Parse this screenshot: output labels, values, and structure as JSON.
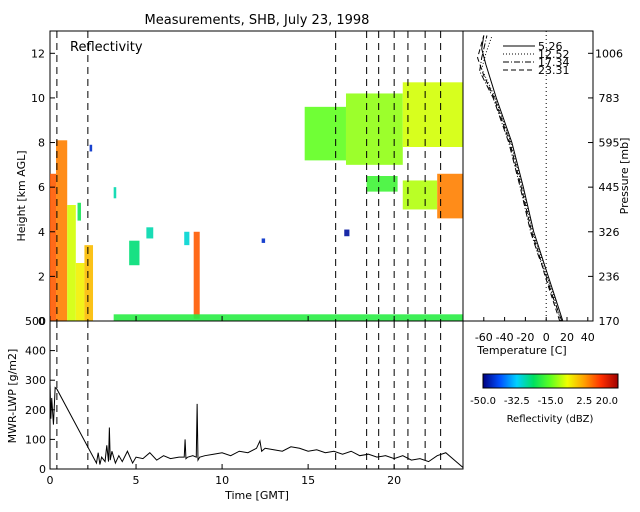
{
  "title": "Measurements, SHB, July 23, 1998",
  "chart_data": [
    {
      "id": "reflectivity",
      "type": "heatmap",
      "panel_label": "Reflectivity",
      "xlabel": "",
      "ylabel": "Height [km AGL]",
      "xlim": [
        0,
        24
      ],
      "ylim": [
        0,
        13
      ],
      "xticks": [
        0,
        5,
        10,
        15,
        20
      ],
      "yticks": [
        0,
        2,
        4,
        6,
        8,
        10,
        12
      ],
      "dashed_times": [
        0.4,
        2.2,
        16.6,
        18.4,
        19.1,
        20.0,
        20.8,
        21.8,
        22.7
      ],
      "cells": [
        {
          "t0": 0.0,
          "t1": 0.35,
          "h0": 0.0,
          "h1": 6.6,
          "dbz": 8
        },
        {
          "t0": 0.35,
          "t1": 1.0,
          "h0": 0.0,
          "h1": 8.1,
          "dbz": 5
        },
        {
          "t0": 1.0,
          "t1": 1.5,
          "h0": 0.0,
          "h1": 5.2,
          "dbz": -8
        },
        {
          "t0": 1.5,
          "t1": 2.0,
          "h0": 0.0,
          "h1": 2.6,
          "dbz": -5
        },
        {
          "t0": 2.0,
          "t1": 2.5,
          "h0": 0.0,
          "h1": 3.4,
          "dbz": 0
        },
        {
          "t0": 1.6,
          "t1": 1.8,
          "h0": 4.5,
          "h1": 5.3,
          "dbz": -22
        },
        {
          "t0": 2.3,
          "t1": 2.45,
          "h0": 7.6,
          "h1": 7.9,
          "dbz": -45
        },
        {
          "t0": 3.7,
          "t1": 3.85,
          "h0": 5.5,
          "h1": 6.0,
          "dbz": -28
        },
        {
          "t0": 4.6,
          "t1": 5.2,
          "h0": 2.5,
          "h1": 3.6,
          "dbz": -25
        },
        {
          "t0": 5.6,
          "t1": 6.0,
          "h0": 3.7,
          "h1": 4.2,
          "dbz": -28
        },
        {
          "t0": 7.8,
          "t1": 8.1,
          "h0": 3.4,
          "h1": 4.0,
          "dbz": -30
        },
        {
          "t0": 8.35,
          "t1": 8.7,
          "h0": 0.1,
          "h1": 4.0,
          "dbz": 8
        },
        {
          "t0": 12.3,
          "t1": 12.5,
          "h0": 3.5,
          "h1": 3.7,
          "dbz": -45
        },
        {
          "t0": 3.7,
          "t1": 24.0,
          "h0": 0.0,
          "h1": 0.3,
          "dbz": -20
        },
        {
          "t0": 14.8,
          "t1": 17.2,
          "h0": 7.2,
          "h1": 9.6,
          "dbz": -15
        },
        {
          "t0": 17.2,
          "t1": 20.5,
          "h0": 7.0,
          "h1": 10.2,
          "dbz": -12
        },
        {
          "t0": 20.5,
          "t1": 24.0,
          "h0": 7.8,
          "h1": 10.7,
          "dbz": -8
        },
        {
          "t0": 18.4,
          "t1": 20.2,
          "h0": 5.8,
          "h1": 6.5,
          "dbz": -18
        },
        {
          "t0": 20.5,
          "t1": 22.5,
          "h0": 5.0,
          "h1": 6.3,
          "dbz": -10
        },
        {
          "t0": 22.5,
          "t1": 24.0,
          "h0": 4.6,
          "h1": 6.6,
          "dbz": 5
        },
        {
          "t0": 17.1,
          "t1": 17.4,
          "h0": 3.8,
          "h1": 4.1,
          "dbz": -48
        }
      ]
    },
    {
      "id": "sounding",
      "type": "line",
      "xlabel": "Temperature [C]",
      "ylabel": "Pressure [mb]",
      "xlim": [
        -80,
        45
      ],
      "ylim": [
        1006,
        170
      ],
      "xticks": [
        -60,
        -40,
        -20,
        0,
        20,
        40
      ],
      "pressure_ticks": [
        "170",
        "236",
        "326",
        "445",
        "595",
        "783",
        "1006"
      ],
      "height_ticks_km": [
        0,
        2.0,
        4.0,
        6.0,
        8.0,
        10.0,
        12.0
      ],
      "series": [
        {
          "name": "5.26",
          "style": "solid",
          "h": [
            0.0,
            1.0,
            2.0,
            3.0,
            4.0,
            6.0,
            8.0,
            10.0,
            11.5,
            12.2,
            12.8
          ],
          "t": [
            16.0,
            9.0,
            2.0,
            -5.0,
            -12.0,
            -22.0,
            -33.0,
            -48.0,
            -58.0,
            -62.0,
            -60.0
          ]
        },
        {
          "name": "12.52",
          "style": "dotted",
          "h": [
            0.0,
            1.0,
            2.0,
            3.0,
            4.0,
            6.0,
            8.0,
            10.0,
            11.3,
            12.0,
            12.8
          ],
          "t": [
            14.0,
            8.0,
            1.0,
            -6.0,
            -13.0,
            -23.0,
            -34.0,
            -49.0,
            -62.0,
            -58.0,
            -52.0
          ]
        },
        {
          "name": "17.34",
          "style": "dash-dot",
          "h": [
            0.0,
            1.0,
            2.0,
            3.0,
            4.0,
            6.0,
            8.0,
            10.0,
            11.2,
            11.8,
            12.8
          ],
          "t": [
            15.0,
            7.0,
            0.0,
            -8.0,
            -15.0,
            -25.0,
            -36.0,
            -51.0,
            -64.0,
            -62.0,
            -57.0
          ]
        },
        {
          "name": "23.31",
          "style": "dashed",
          "h": [
            0.0,
            1.0,
            2.0,
            3.0,
            4.0,
            6.0,
            8.0,
            10.0,
            11.0,
            11.8,
            12.8
          ],
          "t": [
            13.0,
            6.0,
            -1.0,
            -7.0,
            -14.0,
            -24.0,
            -35.0,
            -50.0,
            -60.0,
            -66.0,
            -60.0
          ]
        }
      ]
    },
    {
      "id": "lwp",
      "type": "line",
      "xlabel": "Time [GMT]",
      "ylabel": "MWR-LWP [g/m2]",
      "xlim": [
        0,
        24
      ],
      "ylim": [
        0,
        500
      ],
      "xticks": [
        0,
        5,
        10,
        15,
        20
      ],
      "yticks": [
        0,
        100,
        200,
        300,
        400,
        500
      ],
      "series": [
        {
          "name": "",
          "x": [
            0.0,
            0.05,
            0.1,
            0.2,
            0.3,
            0.4,
            2.7,
            2.8,
            2.9,
            3.0,
            3.2,
            3.3,
            3.4,
            3.45,
            3.5,
            3.6,
            3.8,
            4.0,
            4.2,
            4.5,
            4.8,
            5.0,
            5.4,
            5.8,
            6.2,
            6.6,
            7.0,
            7.5,
            7.8,
            7.85,
            7.9,
            8.0,
            8.3,
            8.5,
            8.55,
            8.6,
            8.7,
            9.0,
            9.5,
            10.0,
            10.5,
            11.0,
            11.5,
            12.0,
            12.2,
            12.3,
            12.5,
            13.0,
            13.5,
            14.0,
            14.5,
            15.0,
            15.5,
            16.0,
            16.5,
            17.0,
            17.5,
            18.0,
            18.5,
            19.0,
            19.5,
            20.0,
            20.5,
            21.0,
            21.5,
            22.0,
            22.5,
            23.0,
            23.5,
            24.0
          ],
          "y": [
            290,
            170,
            240,
            150,
            275,
            270,
            20,
            55,
            15,
            40,
            25,
            80,
            25,
            140,
            30,
            60,
            20,
            45,
            25,
            60,
            20,
            40,
            35,
            55,
            30,
            45,
            35,
            40,
            40,
            100,
            35,
            40,
            45,
            40,
            220,
            30,
            40,
            45,
            50,
            55,
            45,
            60,
            55,
            70,
            95,
            60,
            70,
            65,
            60,
            75,
            70,
            60,
            65,
            55,
            60,
            50,
            60,
            45,
            50,
            40,
            45,
            35,
            45,
            30,
            35,
            25,
            45,
            55,
            30,
            5
          ]
        }
      ]
    }
  ],
  "colorbar": {
    "title": "Reflectivity (dBZ)",
    "min": -50,
    "max": 20,
    "tick_labels": [
      "-50.0",
      "-32.5",
      "-15.0",
      "2.5",
      "20.0"
    ],
    "stops": [
      "#000080",
      "#0050ff",
      "#00d0ff",
      "#00e060",
      "#60ff20",
      "#f0ff00",
      "#ffa000",
      "#ff3000",
      "#a00000"
    ]
  }
}
